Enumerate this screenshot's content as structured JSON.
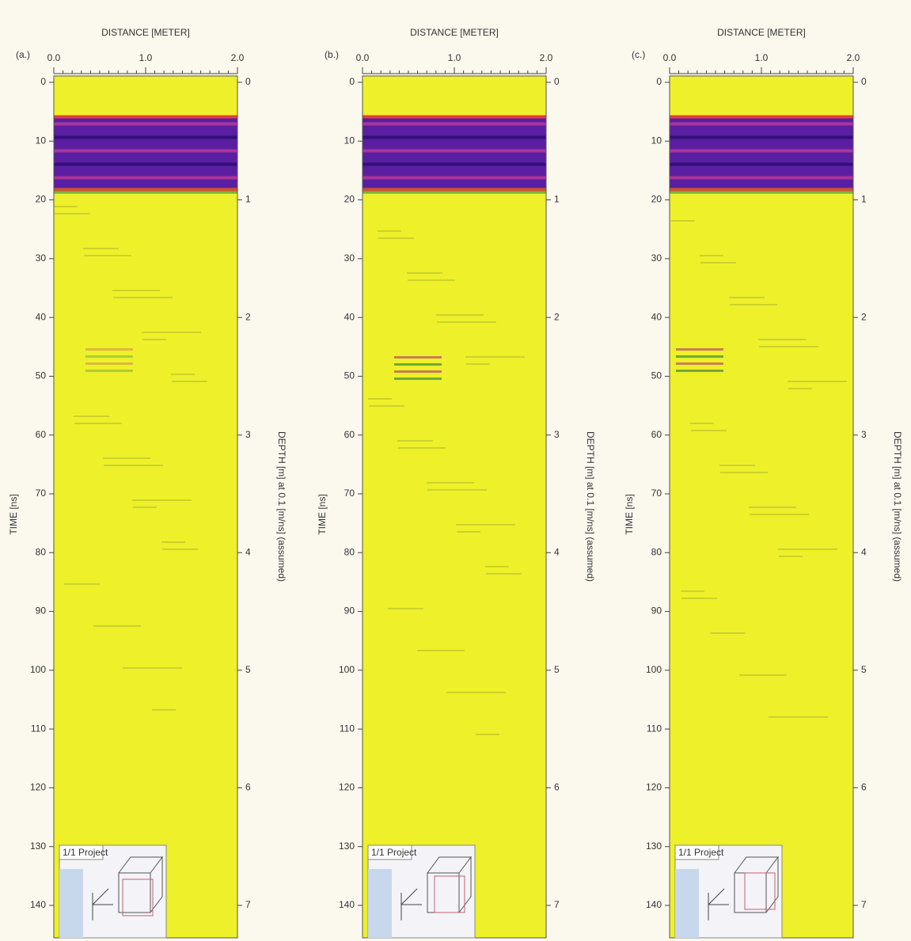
{
  "chart_data": [
    {
      "type": "radargram",
      "label": "(a.)",
      "x_title": "DISTANCE [METER]",
      "xlim": [
        0,
        2
      ],
      "xticks": [
        {
          "value": 0,
          "label": "0.0"
        },
        {
          "value": 1,
          "label": "1.0"
        },
        {
          "value": 2,
          "label": "2.0"
        }
      ],
      "y_title": "TIME [ns]",
      "ylim": [
        0,
        140
      ],
      "yticks": [
        0,
        10,
        20,
        30,
        40,
        50,
        60,
        70,
        80,
        90,
        100,
        110,
        120,
        130,
        140
      ],
      "y2_title": "DEPTH [m] at 0.1 [m/ns] (assumed)",
      "y2lim": [
        0,
        7
      ],
      "y2ticks": [
        0,
        1,
        2,
        3,
        4,
        5,
        6,
        7
      ],
      "inset": "1/1 Project"
    },
    {
      "type": "radargram",
      "label": "(b.)",
      "x_title": "DISTANCE [METER]",
      "xlim": [
        0,
        2
      ],
      "xticks": [
        {
          "value": 0,
          "label": "0.0"
        },
        {
          "value": 1,
          "label": "1.0"
        },
        {
          "value": 2,
          "label": "2.0"
        }
      ],
      "y_title": "TIME [ns]",
      "ylim": [
        0,
        140
      ],
      "yticks": [
        0,
        10,
        20,
        30,
        40,
        50,
        60,
        70,
        80,
        90,
        100,
        110,
        120,
        130,
        140
      ],
      "y2_title": "DEPTH [m] at 0.1 [m/ns] (assumed)",
      "y2lim": [
        0,
        7
      ],
      "y2ticks": [
        0,
        1,
        2,
        3,
        4,
        5,
        6,
        7
      ],
      "inset": "1/1 Project"
    },
    {
      "type": "radargram",
      "label": "(c.)",
      "x_title": "DISTANCE [METER]",
      "xlim": [
        0,
        2
      ],
      "xticks": [
        {
          "value": 0,
          "label": "0.0"
        },
        {
          "value": 1,
          "label": "1.0"
        },
        {
          "value": 2,
          "label": "2.0"
        }
      ],
      "y_title": "TIME [ns]",
      "ylim": [
        0,
        140
      ],
      "yticks": [
        0,
        10,
        20,
        30,
        40,
        50,
        60,
        70,
        80,
        90,
        100,
        110,
        120,
        130,
        140
      ],
      "y2_title": "DEPTH [m] at 0.1 [m/ns] (assumed)",
      "y2lim": [
        0,
        7
      ],
      "y2ticks": [
        0,
        1,
        2,
        3,
        4,
        5,
        6,
        7
      ],
      "inset": "1/1 Project"
    }
  ]
}
